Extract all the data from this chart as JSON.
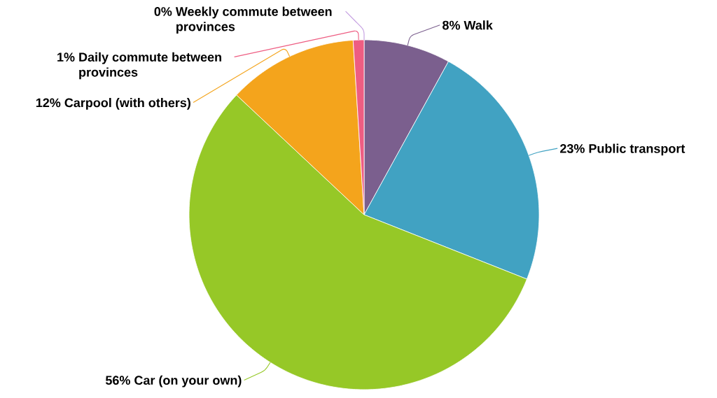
{
  "chart_data": {
    "type": "pie",
    "categories": [
      "Walk",
      "Public transport",
      "Car (on your own)",
      "Carpool (with others)",
      "Daily commute between provinces",
      "Weekly commute between provinces"
    ],
    "values": [
      8,
      23,
      56,
      12,
      1,
      0
    ],
    "value_labels": [
      "8%",
      "23%",
      "56%",
      "12%",
      "1%",
      "0%"
    ],
    "colors": [
      "#7b5f8e",
      "#41a2c2",
      "#96c827",
      "#f4a41c",
      "#ee5d82",
      "#c39ce0"
    ]
  }
}
